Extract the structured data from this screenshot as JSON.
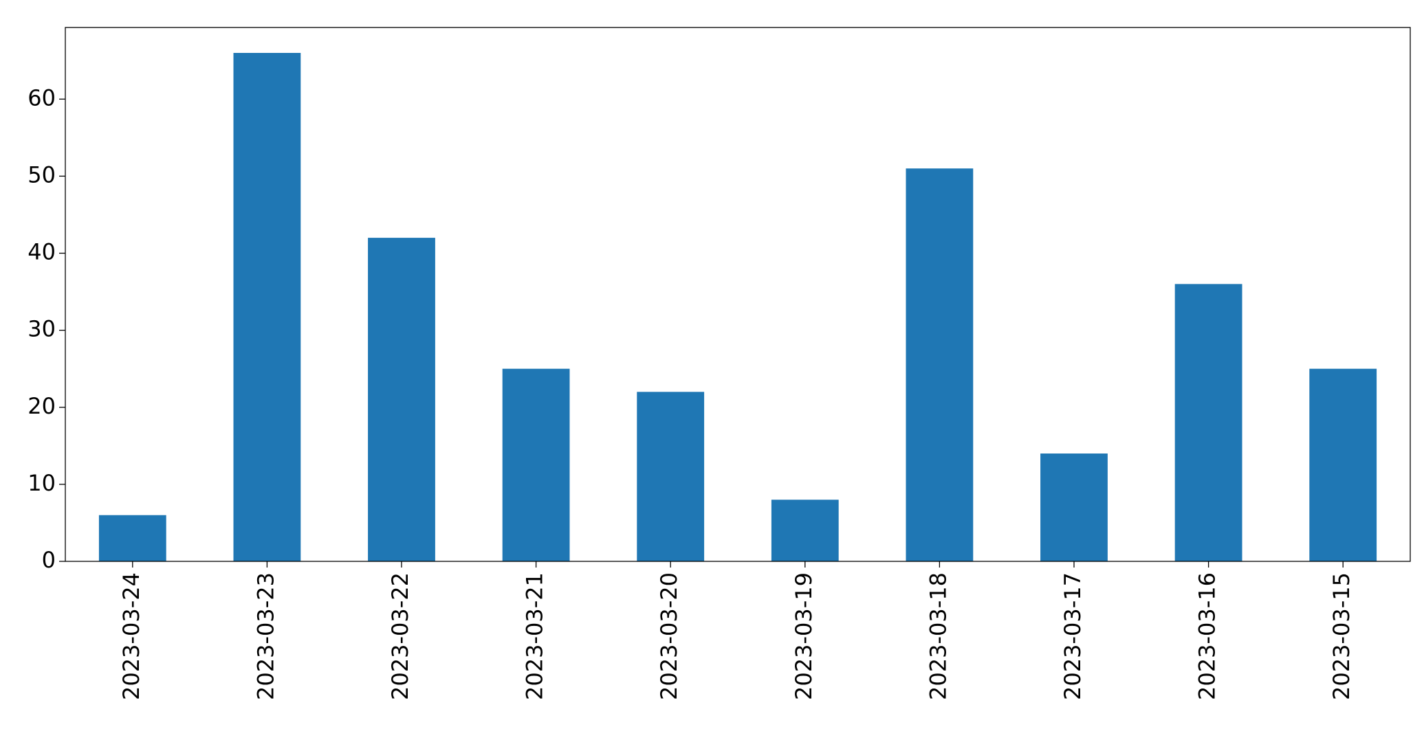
{
  "chart_data": {
    "type": "bar",
    "categories": [
      "2023-03-24",
      "2023-03-23",
      "2023-03-22",
      "2023-03-21",
      "2023-03-20",
      "2023-03-19",
      "2023-03-18",
      "2023-03-17",
      "2023-03-16",
      "2023-03-15"
    ],
    "values": [
      6,
      66,
      42,
      25,
      22,
      8,
      51,
      14,
      36,
      25
    ],
    "color": "#1f77b4",
    "ylim": [
      0,
      69.3
    ],
    "yticks": [
      0,
      10,
      20,
      30,
      40,
      50,
      60
    ],
    "grid": false
  }
}
